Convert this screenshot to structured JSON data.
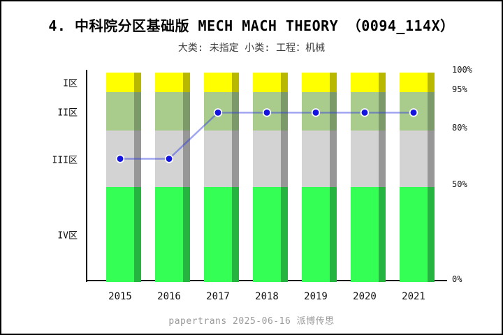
{
  "title": "4. 中科院分区基础版 MECH MACH THEORY （0094_114X）",
  "subtitle": "大类: 未指定 小类: 工程：机械",
  "footer": "papertrans 2025-06-16 派博传思",
  "chart_data": {
    "type": "bar",
    "subtype": "stacked percentile bands with line overlay",
    "title": "4. 中科院分区基础版 MECH MACH THEORY （0094_114X）",
    "subtitle": "大类: 未指定 小类: 工程：机械",
    "categories": [
      "2015",
      "2016",
      "2017",
      "2018",
      "2019",
      "2020",
      "2021"
    ],
    "bands": [
      {
        "label": "I区",
        "from": 95,
        "to": 100,
        "color": "#FFFF00",
        "shade_color": "#B8B800"
      },
      {
        "label": "II区",
        "from": 80,
        "to": 95,
        "color": "#A9CC8D",
        "shade_color": "#7C9A69"
      },
      {
        "label": "III区",
        "from": 50,
        "to": 80,
        "color": "#D3D3D3",
        "shade_color": "#979797"
      },
      {
        "label": "IV区",
        "from": 0,
        "to": 50,
        "color": "#33FF55",
        "shade_color": "#26B440"
      }
    ],
    "series": [
      {
        "name": "journal-percentile",
        "values": [
          65,
          65,
          87,
          87,
          87,
          87,
          87
        ],
        "line_color": "rgba(45,55,225,0.45)",
        "marker_color": "#1414DE",
        "marker_edge_color": "#FFFFFF"
      }
    ],
    "y_ticks": [
      {
        "label": "100%",
        "value": 100
      },
      {
        "label": "95%",
        "value": 95
      },
      {
        "label": "80%",
        "value": 80
      },
      {
        "label": "50%",
        "value": 50
      },
      {
        "label": "0%",
        "value": 0
      }
    ],
    "ylim": [
      0,
      100
    ],
    "legend": "none",
    "grid": false
  }
}
